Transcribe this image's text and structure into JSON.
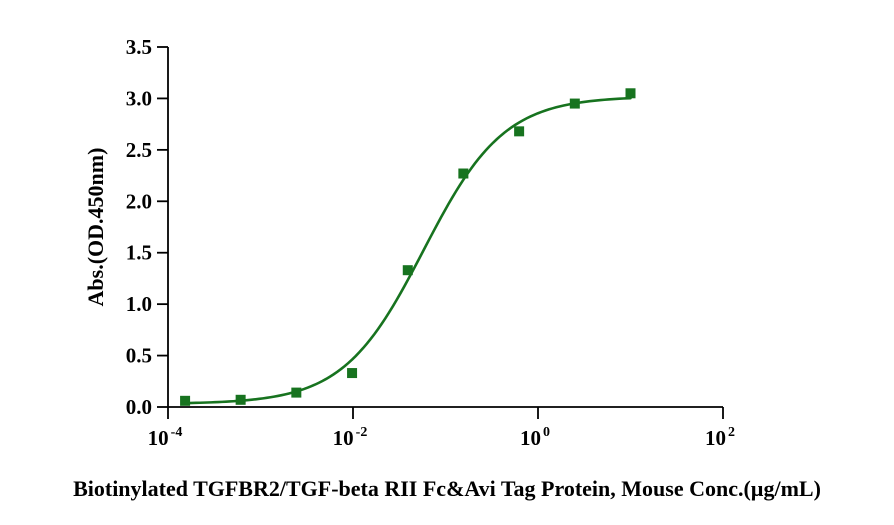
{
  "chart_data": {
    "type": "scatter",
    "title": "",
    "xlabel": "Biotinylated TGFBR2/TGF-beta RII Fc&Avi Tag Protein, Mouse Conc.(µg/mL)",
    "ylabel": "Abs.(OD.450nm)",
    "x_scale": "log10",
    "xlim_exp": [
      -4,
      2
    ],
    "ylim": [
      0,
      3.5
    ],
    "grid": false,
    "legend": false,
    "colors": {
      "series": "#17731f",
      "axis": "#000000"
    },
    "x_ticks": [
      {
        "value": 0.0001,
        "base": "10",
        "exp": "-4"
      },
      {
        "value": 0.01,
        "base": "10",
        "exp": "-2"
      },
      {
        "value": 1,
        "base": "10",
        "exp": "0"
      },
      {
        "value": 100,
        "base": "10",
        "exp": "2"
      }
    ],
    "y_ticks": [
      {
        "value": 0.0,
        "label": "0.0"
      },
      {
        "value": 0.5,
        "label": "0.5"
      },
      {
        "value": 1.0,
        "label": "1.0"
      },
      {
        "value": 1.5,
        "label": "1.5"
      },
      {
        "value": 2.0,
        "label": "2.0"
      },
      {
        "value": 2.5,
        "label": "2.5"
      },
      {
        "value": 3.0,
        "label": "3.0"
      },
      {
        "value": 3.5,
        "label": "3.5"
      }
    ],
    "series": [
      {
        "marker": "square",
        "color": "#17731f",
        "points": [
          {
            "x": 0.000153,
            "y": 0.06
          },
          {
            "x": 0.00061,
            "y": 0.07
          },
          {
            "x": 0.00244,
            "y": 0.14
          },
          {
            "x": 0.00977,
            "y": 0.33
          },
          {
            "x": 0.0391,
            "y": 1.33
          },
          {
            "x": 0.156,
            "y": 2.27
          },
          {
            "x": 0.625,
            "y": 2.68
          },
          {
            "x": 2.5,
            "y": 2.95
          },
          {
            "x": 10,
            "y": 3.05
          }
        ],
        "fit": {
          "model": "4PL",
          "bottom": 0.03,
          "top": 3.02,
          "ec50": 0.058,
          "hill": 1.0,
          "x_range": [
            0.000153,
            10
          ]
        }
      }
    ]
  }
}
